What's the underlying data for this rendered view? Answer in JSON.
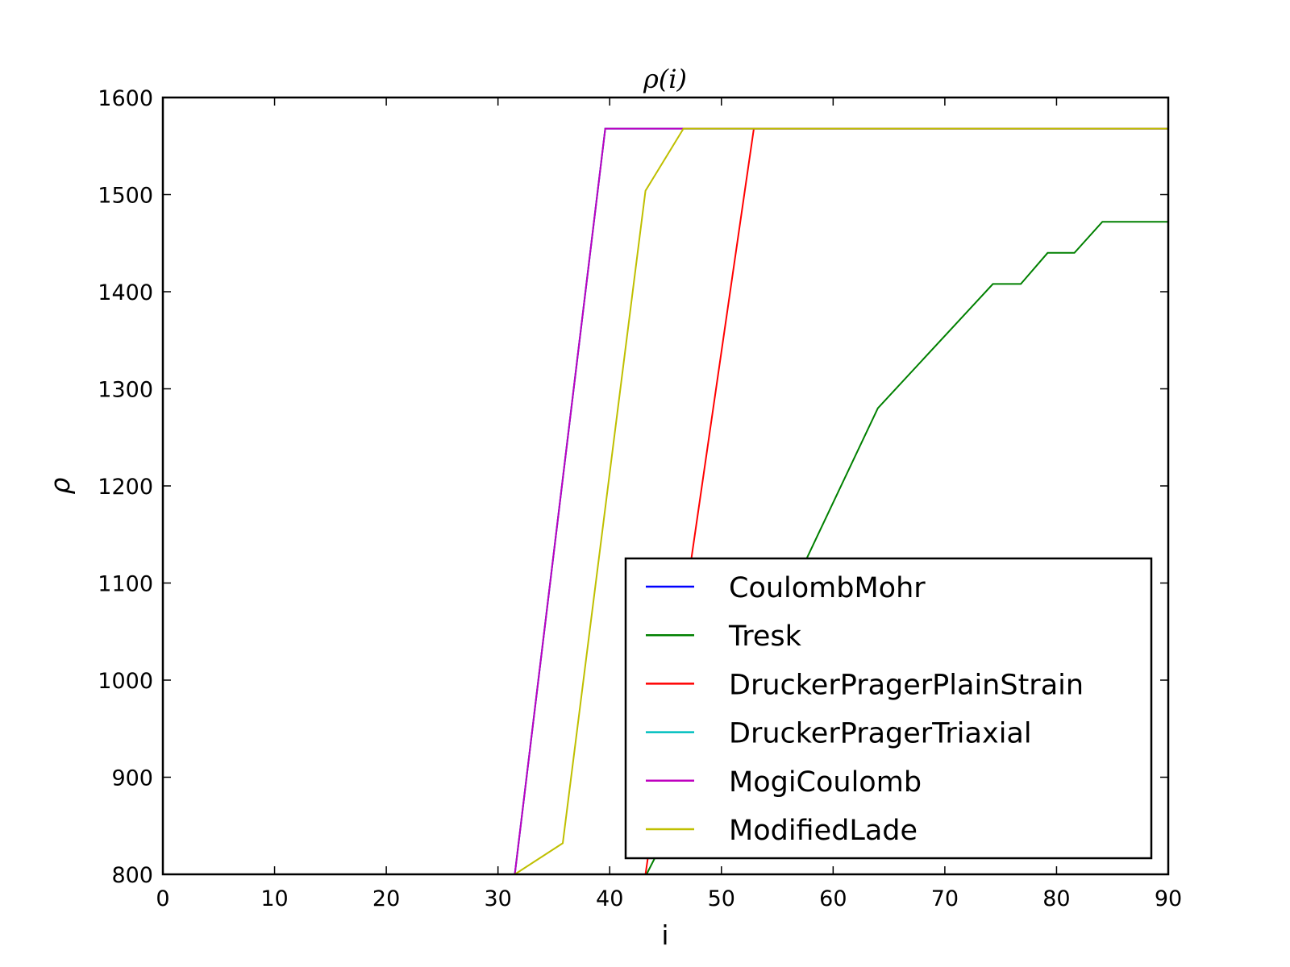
{
  "chart_data": {
    "type": "line",
    "title": "ρ(i)",
    "xlabel": "i",
    "ylabel": "ρ",
    "xlim": [
      0,
      90
    ],
    "ylim": [
      800,
      1600
    ],
    "xticks": [
      0,
      10,
      20,
      30,
      40,
      50,
      60,
      70,
      80,
      90
    ],
    "yticks": [
      800,
      900,
      1000,
      1100,
      1200,
      1300,
      1400,
      1500,
      1600
    ],
    "grid": false,
    "legend_position": "lower-right",
    "series": [
      {
        "name": "CoulombMohr",
        "color": "#0000ff",
        "points": [
          [
            0,
            800
          ],
          [
            31.5,
            800
          ],
          [
            39.6,
            1568
          ],
          [
            90,
            1568
          ]
        ]
      },
      {
        "name": "Tresk",
        "color": "#008000",
        "points": [
          [
            0,
            800
          ],
          [
            43.3,
            800
          ],
          [
            57,
            1110
          ],
          [
            64,
            1280
          ],
          [
            74.3,
            1408
          ],
          [
            76.8,
            1408
          ],
          [
            79.2,
            1440
          ],
          [
            81.6,
            1440
          ],
          [
            84.1,
            1472
          ],
          [
            90,
            1472
          ]
        ]
      },
      {
        "name": "DruckerPragerPlainStrain",
        "color": "#ff0000",
        "points": [
          [
            0,
            800
          ],
          [
            43.2,
            800
          ],
          [
            52.9,
            1568
          ],
          [
            90,
            1568
          ]
        ]
      },
      {
        "name": "DruckerPragerTriaxial",
        "color": "#00bfbf",
        "points": [
          [
            0,
            800
          ],
          [
            31.5,
            800
          ],
          [
            39.6,
            1568
          ],
          [
            90,
            1568
          ]
        ]
      },
      {
        "name": "MogiCoulomb",
        "color": "#bf00bf",
        "points": [
          [
            0,
            800
          ],
          [
            31.5,
            800
          ],
          [
            39.6,
            1568
          ],
          [
            90,
            1568
          ]
        ]
      },
      {
        "name": "ModifiedLade",
        "color": "#bfbf00",
        "points": [
          [
            0,
            800
          ],
          [
            31.5,
            800
          ],
          [
            35.8,
            832
          ],
          [
            43.2,
            1504
          ],
          [
            46.6,
            1568
          ],
          [
            90,
            1568
          ]
        ]
      }
    ]
  }
}
